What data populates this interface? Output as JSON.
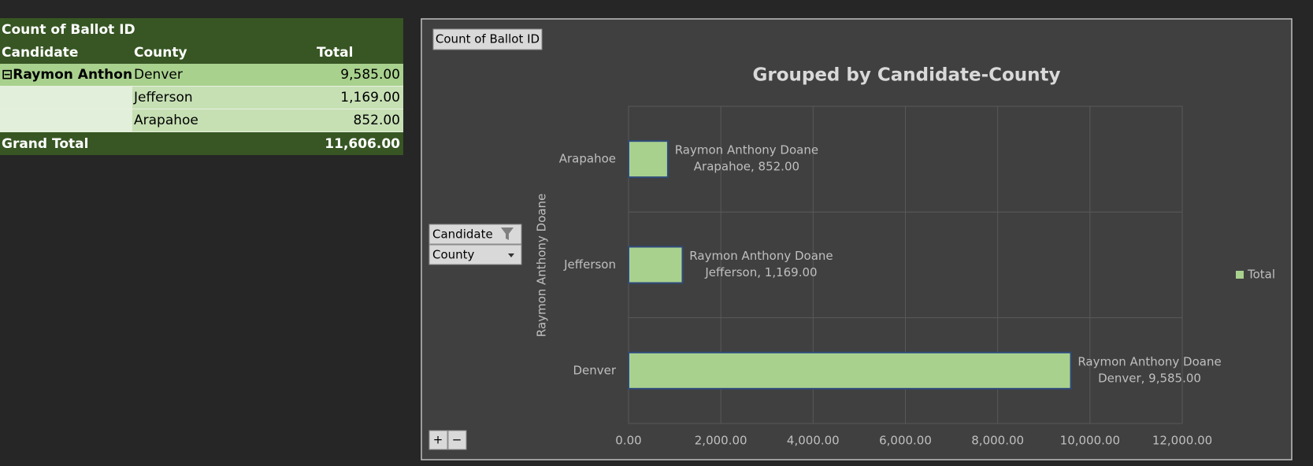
{
  "pivot_table": {
    "header": "Count of Ballot ID",
    "columns": [
      "Candidate",
      "County",
      "Total"
    ],
    "candidate": "Raymon Anthony Doane",
    "rows": [
      {
        "county": "Denver",
        "total": "9,585.00"
      },
      {
        "county": "Jefferson",
        "total": "1,169.00"
      },
      {
        "county": "Arapahoe",
        "total": "852.00"
      }
    ],
    "grand_total_label": "Grand Total",
    "grand_total": "11,606.00"
  },
  "chart_data": {
    "type": "bar",
    "orientation": "horizontal",
    "title": "Grouped by Candidate-County",
    "value_field_button": "Count of Ballot ID",
    "axis_field_buttons": [
      "Candidate",
      "County"
    ],
    "group_label": "Raymon Anthony Doane",
    "categories": [
      "Denver",
      "Jefferson",
      "Arapahoe"
    ],
    "series": [
      {
        "name": "Total",
        "color": "#a9d18e",
        "values": [
          9585,
          1169,
          852
        ],
        "value_labels": [
          "Denver, 9,585.00",
          "Jefferson, 1,169.00",
          "Arapahoe, 852.00"
        ]
      }
    ],
    "xlim": [
      0,
      12000
    ],
    "xticks": [
      {
        "value": 0,
        "label": "0.00"
      },
      {
        "value": 2000,
        "label": "2,000.00"
      },
      {
        "value": 4000,
        "label": "4,000.00"
      },
      {
        "value": 6000,
        "label": "6,000.00"
      },
      {
        "value": 8000,
        "label": "8,000.00"
      },
      {
        "value": 10000,
        "label": "10,000.00"
      },
      {
        "value": 12000,
        "label": "12,000.00"
      }
    ],
    "grid": true,
    "legend": "right"
  }
}
